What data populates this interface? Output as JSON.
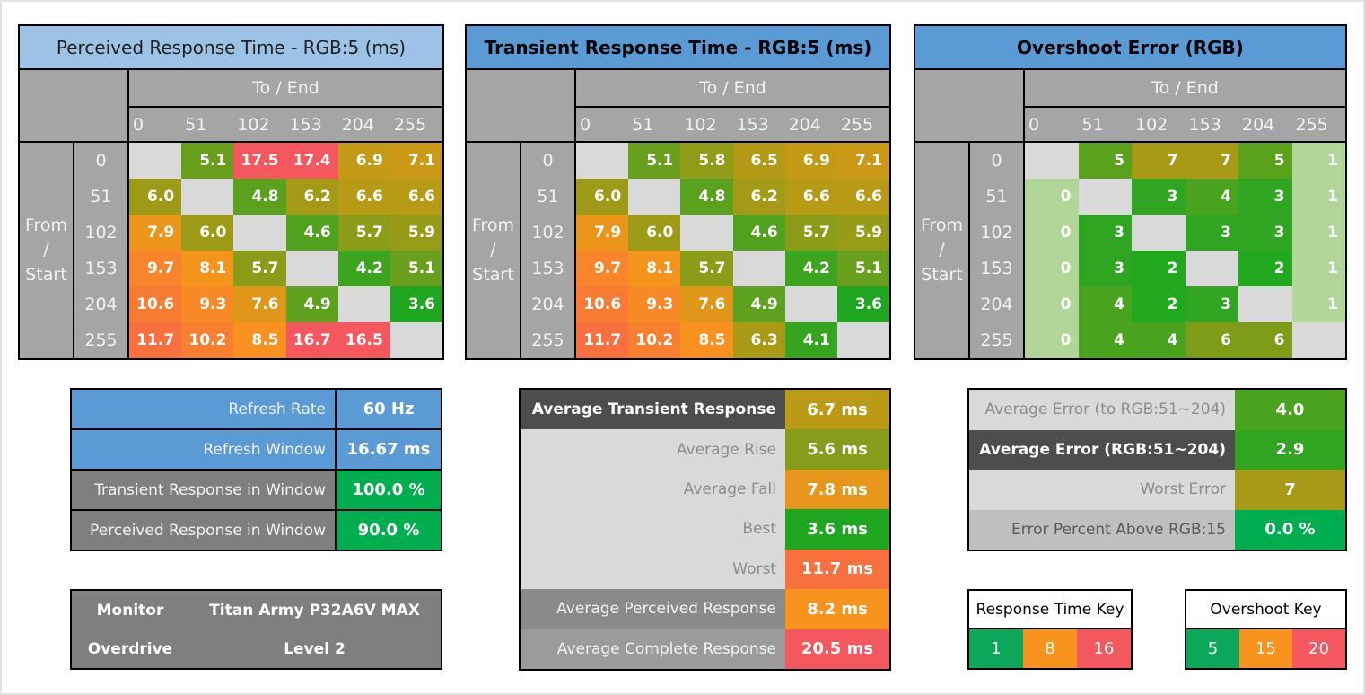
{
  "colors": {
    "blue": "#5b9bd5",
    "light_blue": "#9cc3e6",
    "header_gray": "#a5a5a5",
    "diag_gray": "#d9d9d9",
    "status_green": "#00ad4f",
    "key_green": "#0ca75a",
    "key_orange": "#f8941d",
    "key_red": "#f4575e",
    "monitor_gray": "#7f7f7f",
    "dark_row": "#4d4d4d",
    "light_row": "#d9d9d9",
    "light_row_text": "#8c8c8c",
    "mid_row": "#8a8a8a",
    "mid2_row": "#9b9b9b",
    "lightmid_row": "#bfbfbf",
    "lightmid_text": "#595959",
    "header_text": "#f2f2f2"
  },
  "color_scales": {
    "response": {
      "stops": [
        [
          1,
          [
            10,
            166,
            90
          ]
        ],
        [
          3.6,
          [
            31,
            166,
            33
          ]
        ],
        [
          5.1,
          [
            104,
            160,
            29
          ]
        ],
        [
          6.0,
          [
            156,
            154,
            23
          ]
        ],
        [
          6.9,
          [
            196,
            154,
            21
          ]
        ],
        [
          8.2,
          [
            248,
            148,
            29
          ]
        ],
        [
          11.7,
          [
            247,
            112,
            61
          ]
        ],
        [
          16,
          [
            244,
            87,
            94
          ]
        ]
      ]
    },
    "overshoot": {
      "low_color": [
        178,
        214,
        153
      ],
      "low_threshold": 1.5,
      "stops": [
        [
          2,
          [
            34,
            168,
            30
          ]
        ],
        [
          3,
          [
            48,
            165,
            34
          ]
        ],
        [
          4,
          [
            74,
            163,
            30
          ]
        ],
        [
          5,
          [
            90,
            161,
            28
          ]
        ],
        [
          6,
          [
            127,
            156,
            25
          ]
        ],
        [
          7,
          [
            168,
            154,
            22
          ]
        ]
      ]
    }
  },
  "heatmaps": [
    {
      "title": "Perceived Response Time - RGB:5 (ms)",
      "title_style": "light",
      "dom": "perceived-response-table"
    },
    {
      "title": "Transient Response Time - RGB:5 (ms)",
      "title_style": "bold",
      "dom": "transient-response-table"
    },
    {
      "title": "Overshoot Error (RGB)",
      "title_style": "bold",
      "dom": "overshoot-error-table"
    }
  ],
  "chart_data": [
    {
      "type": "heatmap",
      "title": "Perceived Response Time - RGB:5 (ms)",
      "x_label": "To / End",
      "y_label": "From / Start",
      "x_ticks": [
        "0",
        "51",
        "102",
        "153",
        "204",
        "255"
      ],
      "y_ticks": [
        "0",
        "51",
        "102",
        "153",
        "204",
        "255"
      ],
      "unit": "ms",
      "palette": "response",
      "decimals": 1,
      "values": [
        [
          null,
          5.1,
          17.5,
          17.4,
          6.9,
          7.1
        ],
        [
          6.0,
          null,
          4.8,
          6.2,
          6.6,
          6.6
        ],
        [
          7.9,
          6.0,
          null,
          4.6,
          5.7,
          5.9
        ],
        [
          9.7,
          8.1,
          5.7,
          null,
          4.2,
          5.1
        ],
        [
          10.6,
          9.3,
          7.6,
          4.9,
          null,
          3.6
        ],
        [
          11.7,
          10.2,
          8.5,
          16.7,
          16.5,
          null
        ]
      ]
    },
    {
      "type": "heatmap",
      "title": "Transient Response Time - RGB:5 (ms)",
      "x_label": "To / End",
      "y_label": "From / Start",
      "x_ticks": [
        "0",
        "51",
        "102",
        "153",
        "204",
        "255"
      ],
      "y_ticks": [
        "0",
        "51",
        "102",
        "153",
        "204",
        "255"
      ],
      "unit": "ms",
      "palette": "response",
      "decimals": 1,
      "values": [
        [
          null,
          5.1,
          5.8,
          6.5,
          6.9,
          7.1
        ],
        [
          6.0,
          null,
          4.8,
          6.2,
          6.6,
          6.6
        ],
        [
          7.9,
          6.0,
          null,
          4.6,
          5.7,
          5.9
        ],
        [
          9.7,
          8.1,
          5.7,
          null,
          4.2,
          5.1
        ],
        [
          10.6,
          9.3,
          7.6,
          4.9,
          null,
          3.6
        ],
        [
          11.7,
          10.2,
          8.5,
          6.3,
          4.1,
          null
        ]
      ]
    },
    {
      "type": "heatmap",
      "title": "Overshoot Error (RGB)",
      "x_label": "To / End",
      "y_label": "From / Start",
      "x_ticks": [
        "0",
        "51",
        "102",
        "153",
        "204",
        "255"
      ],
      "y_ticks": [
        "0",
        "51",
        "102",
        "153",
        "204",
        "255"
      ],
      "unit": "RGB",
      "palette": "overshoot",
      "decimals": 0,
      "values": [
        [
          null,
          5,
          7,
          7,
          5,
          1
        ],
        [
          0,
          null,
          3,
          4,
          3,
          1
        ],
        [
          0,
          3,
          null,
          3,
          3,
          1
        ],
        [
          0,
          3,
          2,
          null,
          2,
          1
        ],
        [
          0,
          4,
          2,
          3,
          null,
          1
        ],
        [
          0,
          4,
          4,
          6,
          6,
          null
        ]
      ]
    }
  ],
  "row_axis_lines": [
    "From",
    "/",
    "Start"
  ],
  "refresh_table": {
    "rows": [
      {
        "label": "Refresh Rate",
        "label_style": "blue",
        "value": "60 Hz",
        "value_style": "blue"
      },
      {
        "label": "Refresh Window",
        "label_style": "blue",
        "value": "16.67 ms",
        "value_style": "blue"
      },
      {
        "label": "Transient Response in Window",
        "label_style": "gray",
        "value": "100.0 %",
        "value_style": "green"
      },
      {
        "label": "Perceived Response in Window",
        "label_style": "gray",
        "value": "90.0 %",
        "value_style": "green"
      }
    ]
  },
  "monitor_table": {
    "rows": [
      {
        "label": "Monitor",
        "value": "Titan Army P32A6V MAX"
      },
      {
        "label": "Overdrive",
        "value": "Level 2"
      }
    ]
  },
  "average_table": {
    "rows": [
      {
        "label": "Average Transient Response",
        "label_style": "dark",
        "bold": true,
        "value": "6.7 ms",
        "num": 6.7,
        "scale": "response"
      },
      {
        "label": "Average Rise",
        "label_style": "light",
        "value": "5.6 ms",
        "num": 5.6,
        "scale": "response"
      },
      {
        "label": "Average Fall",
        "label_style": "light",
        "value": "7.8 ms",
        "num": 7.8,
        "scale": "response"
      },
      {
        "label": "Best",
        "label_style": "light",
        "value": "3.6 ms",
        "num": 3.6,
        "scale": "response"
      },
      {
        "label": "Worst",
        "label_style": "light",
        "value": "11.7 ms",
        "num": 11.7,
        "scale": "response"
      },
      {
        "label": "Average Perceived Response",
        "label_style": "mid",
        "value": "8.2 ms",
        "num": 8.2,
        "scale": "response"
      },
      {
        "label": "Average Complete Response",
        "label_style": "mid2",
        "value": "20.5 ms",
        "num": 20.5,
        "scale": "response"
      }
    ]
  },
  "error_table": {
    "rows": [
      {
        "label": "Average Error (to RGB:51~204)",
        "label_style": "light",
        "value": "4.0",
        "num": 4.0,
        "scale": "overshoot"
      },
      {
        "label": "Average Error (RGB:51~204)",
        "label_style": "dark",
        "bold": true,
        "value": "2.9",
        "num": 2.9,
        "scale": "overshoot"
      },
      {
        "label": "Worst Error",
        "label_style": "light",
        "value": "7",
        "num": 7,
        "scale": "overshoot"
      },
      {
        "label": "Error Percent Above RGB:15",
        "label_style": "lightmid",
        "value": "0.0 %",
        "value_style": "green"
      }
    ]
  },
  "legends": [
    {
      "title": "Response Time Key",
      "cells": [
        {
          "label": "1",
          "color": "key_green"
        },
        {
          "label": "8",
          "color": "key_orange"
        },
        {
          "label": "16",
          "color": "key_red"
        }
      ]
    },
    {
      "title": "Overshoot Key",
      "cells": [
        {
          "label": "5",
          "color": "key_green"
        },
        {
          "label": "15",
          "color": "key_orange"
        },
        {
          "label": "20",
          "color": "key_red"
        }
      ]
    }
  ]
}
